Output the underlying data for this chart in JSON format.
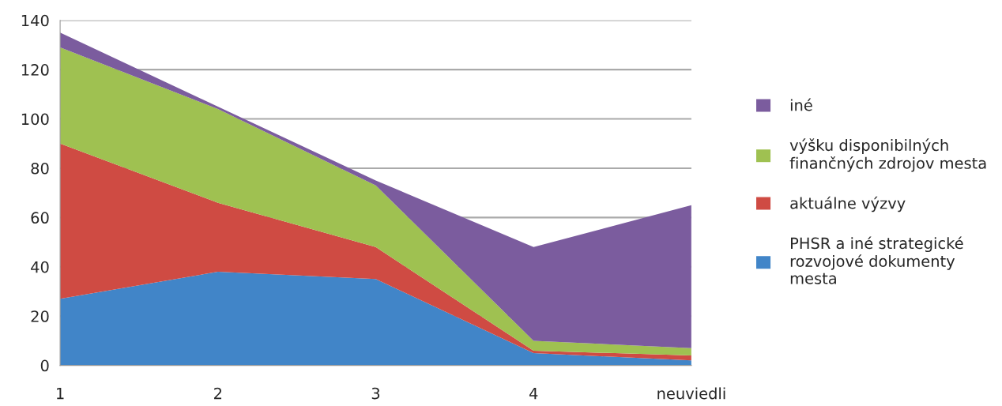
{
  "chart_data": {
    "type": "area",
    "stacked": true,
    "categories": [
      "1",
      "2",
      "3",
      "4",
      "neuviedli"
    ],
    "series": [
      {
        "name": "PHSR a iné strategické\nrozvojové dokumenty\nmesta",
        "color": "#4185c8",
        "values": [
          27,
          38,
          35,
          5,
          2
        ]
      },
      {
        "name": "aktuálne výzvy",
        "color": "#cf4b43",
        "values": [
          63,
          28,
          13,
          1,
          2
        ]
      },
      {
        "name": "výšku disponibilných\nfinančných zdrojov mesta",
        "color": "#9fc151",
        "values": [
          39,
          38,
          25,
          4,
          3
        ]
      },
      {
        "name": "iné",
        "color": "#7b5c9e",
        "values": [
          6,
          1,
          2,
          38,
          58
        ]
      }
    ],
    "ylim": [
      0,
      140
    ],
    "yticks": [
      0,
      20,
      40,
      60,
      80,
      100,
      120,
      140
    ],
    "grid": "y",
    "legend": "right"
  }
}
